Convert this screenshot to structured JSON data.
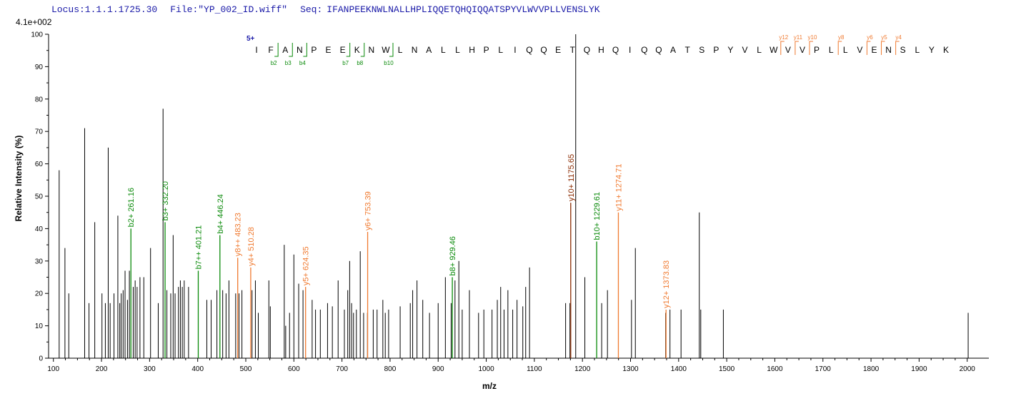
{
  "header": {
    "locus": "Locus:1.1.1.1725.30",
    "file": "File:\"YP_002_ID.wiff\"",
    "seq_label": "Seq:",
    "seq": "IFANPEEKNWLNALLHPLIQQETQHQIQQATSPYVLWVVPLLVENSLYK"
  },
  "intensity_scale": "4.1e+002",
  "charge_label": "5+",
  "colors": {
    "plain": "#000000",
    "b_ion": "#0a8a0a",
    "y_ion": "#f07a30",
    "y10": "#8b2a00",
    "header": "#1a1aa8"
  },
  "chart_data": {
    "type": "bar",
    "xlabel": "m/z",
    "ylabel": "Relative   Intensity (%)",
    "xlim": [
      90,
      2045
    ],
    "ylim": [
      0,
      100
    ],
    "x_ticks": [
      100,
      200,
      300,
      400,
      500,
      600,
      700,
      800,
      900,
      1000,
      1100,
      1200,
      1300,
      1400,
      1500,
      1600,
      1700,
      1800,
      1900,
      2000
    ],
    "y_ticks": [
      0,
      10,
      20,
      30,
      40,
      50,
      60,
      70,
      80,
      90,
      100
    ],
    "peaks": [
      [
        112,
        58
      ],
      [
        124,
        34
      ],
      [
        132,
        20
      ],
      [
        165,
        71
      ],
      [
        174,
        17
      ],
      [
        186,
        42
      ],
      [
        201,
        20
      ],
      [
        208,
        17
      ],
      [
        214,
        65
      ],
      [
        218,
        17
      ],
      [
        226,
        20
      ],
      [
        234,
        44
      ],
      [
        238,
        17
      ],
      [
        241,
        20
      ],
      [
        245,
        21
      ],
      [
        249,
        27
      ],
      [
        254,
        18
      ],
      [
        258,
        27
      ],
      [
        266,
        22
      ],
      [
        270,
        24
      ],
      [
        274,
        22
      ],
      [
        280,
        25
      ],
      [
        288,
        25
      ],
      [
        302,
        34
      ],
      [
        318,
        17
      ],
      [
        328,
        77
      ],
      [
        336,
        21
      ],
      [
        344,
        20
      ],
      [
        349,
        38
      ],
      [
        353,
        20
      ],
      [
        360,
        22
      ],
      [
        364,
        24
      ],
      [
        368,
        22
      ],
      [
        372,
        24
      ],
      [
        381,
        22
      ],
      [
        419,
        18
      ],
      [
        428,
        18
      ],
      [
        440,
        21
      ],
      [
        452,
        21
      ],
      [
        459,
        20
      ],
      [
        465,
        24
      ],
      [
        479,
        20
      ],
      [
        486,
        20
      ],
      [
        492,
        21
      ],
      [
        513,
        21
      ],
      [
        520,
        24
      ],
      [
        526,
        14
      ],
      [
        548,
        24
      ],
      [
        551,
        16
      ],
      [
        580,
        35
      ],
      [
        583,
        10
      ],
      [
        591,
        14
      ],
      [
        600,
        32
      ],
      [
        610,
        23
      ],
      [
        619,
        21
      ],
      [
        638,
        18
      ],
      [
        645,
        15
      ],
      [
        655,
        15
      ],
      [
        670,
        17
      ],
      [
        680,
        16
      ],
      [
        692,
        24
      ],
      [
        705,
        15
      ],
      [
        712,
        21
      ],
      [
        716,
        30
      ],
      [
        720,
        17
      ],
      [
        724,
        14
      ],
      [
        730,
        15
      ],
      [
        738,
        33
      ],
      [
        745,
        14
      ],
      [
        753,
        14
      ],
      [
        765,
        15
      ],
      [
        773,
        15
      ],
      [
        785,
        18
      ],
      [
        790,
        14
      ],
      [
        797,
        15
      ],
      [
        821,
        16
      ],
      [
        842,
        17
      ],
      [
        847,
        21
      ],
      [
        856,
        24
      ],
      [
        868,
        18
      ],
      [
        882,
        14
      ],
      [
        900,
        17
      ],
      [
        915,
        25
      ],
      [
        927,
        17
      ],
      [
        935,
        24
      ],
      [
        943,
        30
      ],
      [
        950,
        15
      ],
      [
        965,
        21
      ],
      [
        984,
        14
      ],
      [
        995,
        15
      ],
      [
        1012,
        15
      ],
      [
        1023,
        18
      ],
      [
        1030,
        22
      ],
      [
        1037,
        15
      ],
      [
        1045,
        21
      ],
      [
        1055,
        15
      ],
      [
        1064,
        18
      ],
      [
        1076,
        16
      ],
      [
        1082,
        22
      ],
      [
        1090,
        28
      ],
      [
        1165,
        17
      ],
      [
        1174,
        17
      ],
      [
        1186,
        100
      ],
      [
        1205,
        25
      ],
      [
        1240,
        17
      ],
      [
        1252,
        21
      ],
      [
        1302,
        18
      ],
      [
        1310,
        34
      ],
      [
        1373,
        14
      ],
      [
        1382,
        15
      ],
      [
        1405,
        15
      ],
      [
        1443,
        45
      ],
      [
        1446,
        15
      ],
      [
        1493,
        15
      ],
      [
        2002,
        14
      ]
    ],
    "labeled_peaks": [
      {
        "x": 261.16,
        "y": 40,
        "label": "b2+ 261.16",
        "kind": "b"
      },
      {
        "x": 332.2,
        "y": 42,
        "label": "b3+ 332.20",
        "kind": "b"
      },
      {
        "x": 401.21,
        "y": 27,
        "label": "b7++ 401.21",
        "kind": "b"
      },
      {
        "x": 446.24,
        "y": 38,
        "label": "b4+ 446.24",
        "kind": "b"
      },
      {
        "x": 483.23,
        "y": 31,
        "label": "y8++ 483.23",
        "kind": "y"
      },
      {
        "x": 510.28,
        "y": 28,
        "label": "y4+ 510.28",
        "kind": "y"
      },
      {
        "x": 624.35,
        "y": 22,
        "label": "y5+ 624.35",
        "kind": "y"
      },
      {
        "x": 753.39,
        "y": 39,
        "label": "y6+ 753.39",
        "kind": "y"
      },
      {
        "x": 929.46,
        "y": 25,
        "label": "b8+ 929.46",
        "kind": "b"
      },
      {
        "x": 1175.65,
        "y": 48,
        "label": "y10+ 1175.65",
        "kind": "y10"
      },
      {
        "x": 1229.61,
        "y": 36,
        "label": "b10+ 1229.61",
        "kind": "b"
      },
      {
        "x": 1274.71,
        "y": 45,
        "label": "y11+ 1274.71",
        "kind": "y"
      },
      {
        "x": 1373.83,
        "y": 15,
        "label": "y12+ 1373.83",
        "kind": "y"
      }
    ]
  },
  "fragment_map": {
    "b_labels": [
      {
        "after": 2,
        "label": "b2"
      },
      {
        "after": 3,
        "label": "b3"
      },
      {
        "after": 4,
        "label": "b4"
      },
      {
        "after": 7,
        "label": "b7"
      },
      {
        "after": 8,
        "label": "b8"
      },
      {
        "after": 10,
        "label": "b10"
      }
    ],
    "y_labels": [
      {
        "before_from_end": 12,
        "label": "y12"
      },
      {
        "before_from_end": 11,
        "label": "y11"
      },
      {
        "before_from_end": 10,
        "label": "y10"
      },
      {
        "before_from_end": 8,
        "label": "y8"
      },
      {
        "before_from_end": 6,
        "label": "y6"
      },
      {
        "before_from_end": 5,
        "label": "y5"
      },
      {
        "before_from_end": 4,
        "label": "y4"
      }
    ]
  }
}
